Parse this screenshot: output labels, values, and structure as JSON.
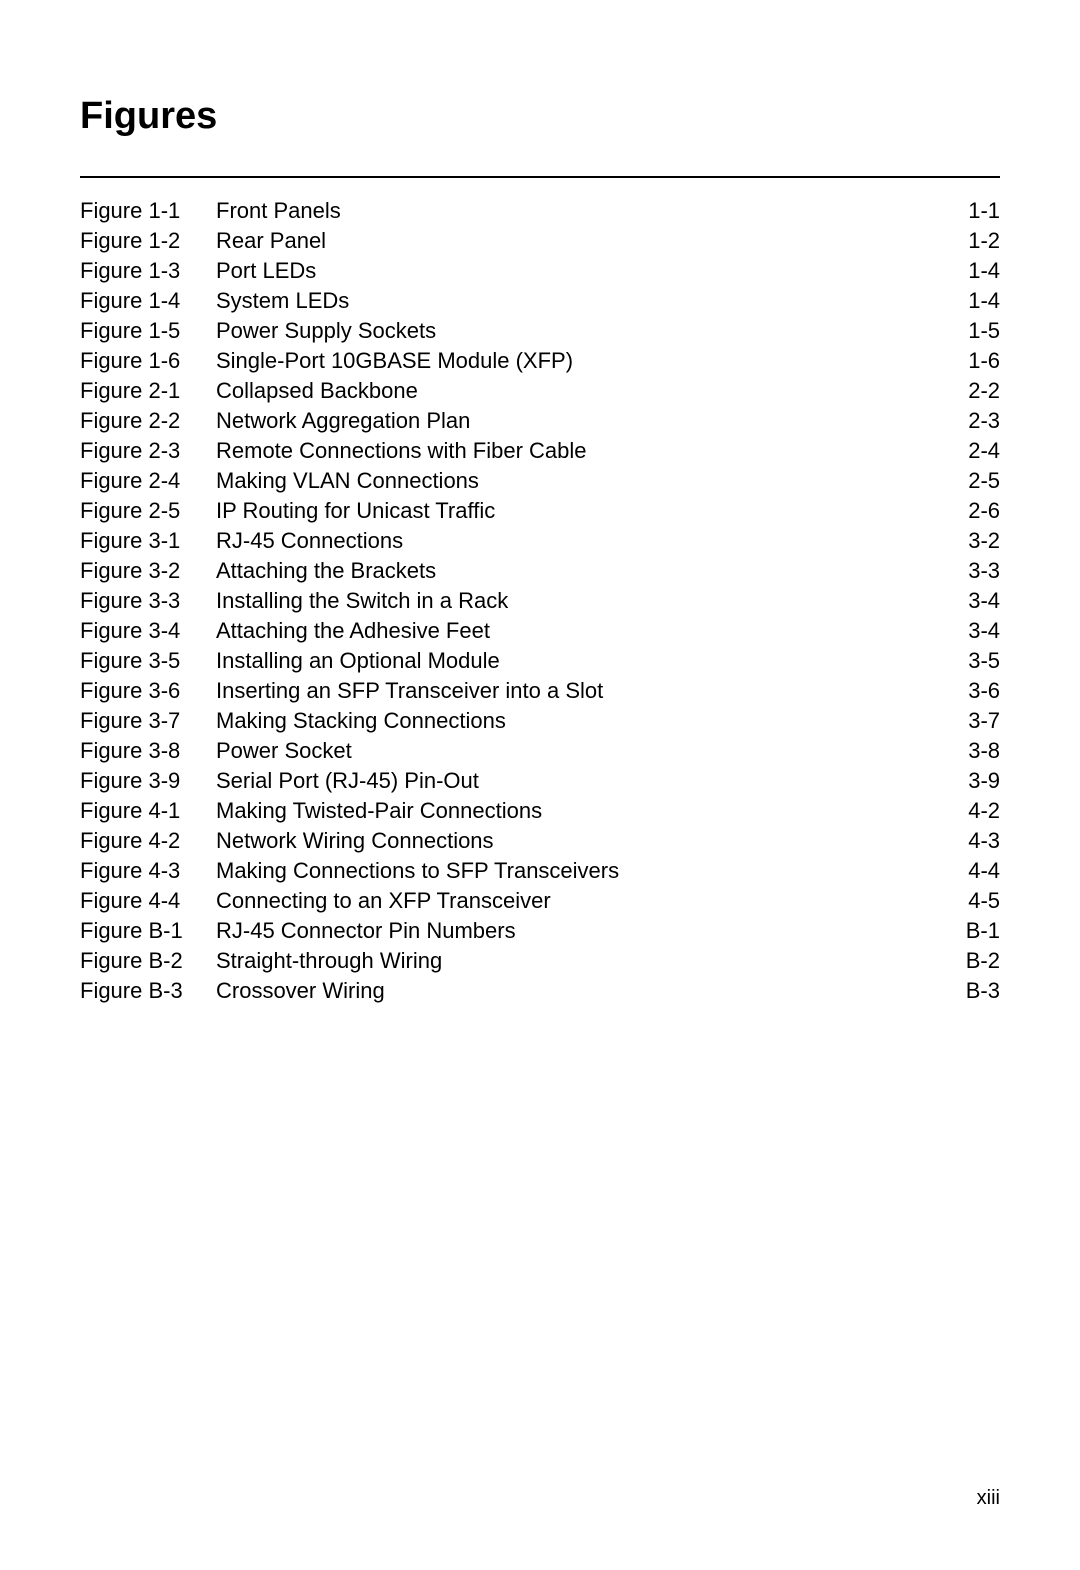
{
  "heading": "Figures",
  "page_number": "xiii",
  "entries": [
    {
      "label": "Figure 1-1",
      "title": "Front Panels",
      "page": "1-1"
    },
    {
      "label": "Figure 1-2",
      "title": "Rear Panel",
      "page": "1-2"
    },
    {
      "label": "Figure 1-3",
      "title": "Port LEDs",
      "page": "1-4"
    },
    {
      "label": "Figure 1-4",
      "title": "System LEDs",
      "page": "1-4"
    },
    {
      "label": "Figure 1-5",
      "title": "Power Supply Sockets",
      "page": "1-5"
    },
    {
      "label": "Figure 1-6",
      "title": "Single-Port 10GBASE Module (XFP)",
      "page": "1-6"
    },
    {
      "label": "Figure 2-1",
      "title": "Collapsed Backbone",
      "page": "2-2"
    },
    {
      "label": "Figure 2-2",
      "title": "Network Aggregation Plan",
      "page": "2-3"
    },
    {
      "label": "Figure 2-3",
      "title": "Remote Connections with Fiber Cable",
      "page": "2-4"
    },
    {
      "label": "Figure 2-4",
      "title": "Making VLAN Connections",
      "page": "2-5"
    },
    {
      "label": "Figure 2-5",
      "title": "IP Routing for Unicast Traffic",
      "page": "2-6"
    },
    {
      "label": "Figure 3-1",
      "title": "RJ-45 Connections",
      "page": "3-2"
    },
    {
      "label": "Figure 3-2",
      "title": "Attaching the Brackets",
      "page": "3-3"
    },
    {
      "label": "Figure 3-3",
      "title": "Installing the Switch in a Rack",
      "page": "3-4"
    },
    {
      "label": "Figure 3-4",
      "title": "Attaching the Adhesive Feet",
      "page": "3-4"
    },
    {
      "label": "Figure 3-5",
      "title": "Installing an Optional Module",
      "page": "3-5"
    },
    {
      "label": "Figure 3-6",
      "title": "Inserting an SFP Transceiver into a Slot",
      "page": "3-6"
    },
    {
      "label": "Figure 3-7",
      "title": "Making Stacking Connections",
      "page": "3-7"
    },
    {
      "label": "Figure 3-8",
      "title": "Power Socket",
      "page": "3-8"
    },
    {
      "label": "Figure 3-9",
      "title": "Serial Port (RJ-45) Pin-Out",
      "page": "3-9"
    },
    {
      "label": "Figure 4-1",
      "title": "Making Twisted-Pair Connections",
      "page": "4-2"
    },
    {
      "label": "Figure 4-2",
      "title": "Network Wiring Connections",
      "page": "4-3"
    },
    {
      "label": "Figure 4-3",
      "title": "Making Connections to SFP Transceivers",
      "page": "4-4"
    },
    {
      "label": "Figure 4-4",
      "title": "Connecting to an XFP Transceiver",
      "page": "4-5"
    },
    {
      "label": "Figure B-1",
      "title": "RJ-45 Connector Pin Numbers",
      "page": "B-1"
    },
    {
      "label": "Figure B-2",
      "title": "Straight-through Wiring",
      "page": "B-2"
    },
    {
      "label": "Figure B-3",
      "title": "Crossover Wiring",
      "page": "B-3"
    }
  ]
}
